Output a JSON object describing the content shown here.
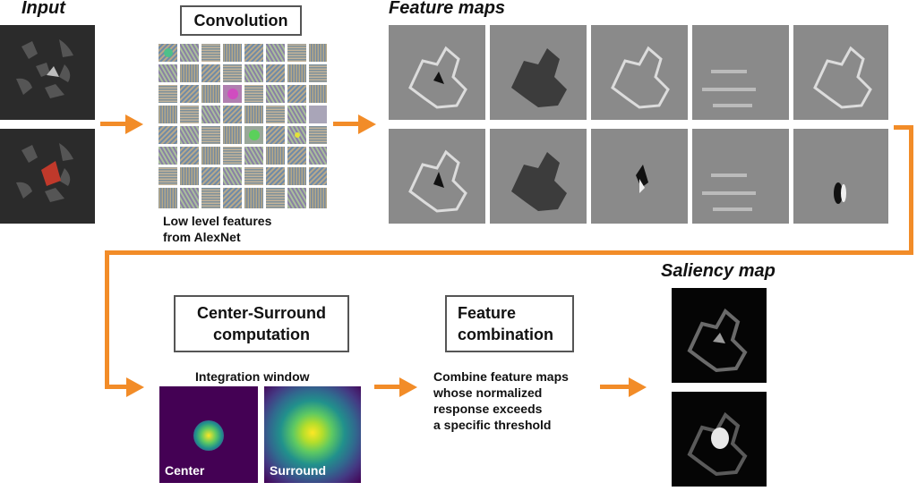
{
  "input": {
    "title": "Input"
  },
  "convolution": {
    "title": "Convolution",
    "caption_line1": "Low level features",
    "caption_line2": "from AlexNet"
  },
  "feature_maps": {
    "title": "Feature maps"
  },
  "center_surround": {
    "title_line1": "Center-Surround",
    "title_line2": "computation",
    "window_label": "Integration window",
    "center_label": "Center",
    "surround_label": "Surround"
  },
  "feature_combination": {
    "title_line1": "Feature",
    "title_line2": "combination",
    "desc_line1": "Combine feature maps",
    "desc_line2": "whose normalized",
    "desc_line3": "response exceeds",
    "desc_line4": "a specific threshold"
  },
  "saliency": {
    "title": "Saliency map"
  },
  "colors": {
    "arrow": "#f28c28",
    "highlight": "#c0392b",
    "viridis_dark": "#440154",
    "viridis_yellow": "#fde725"
  }
}
